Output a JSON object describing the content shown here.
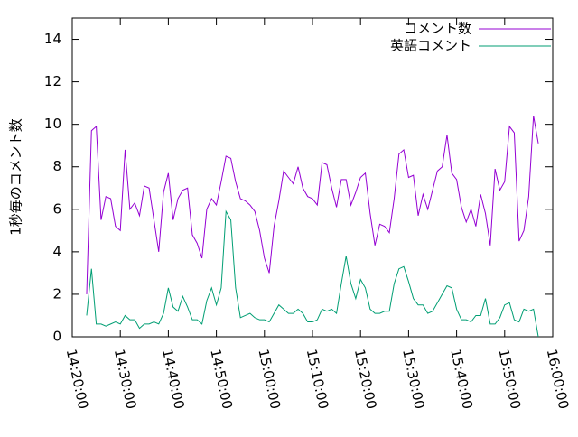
{
  "chart_data": {
    "type": "line",
    "y_label": "1秒毎のコメント数",
    "x": [
      863,
      864,
      865,
      866,
      867,
      868,
      869,
      870,
      871,
      872,
      873,
      874,
      875,
      876,
      877,
      878,
      879,
      880,
      881,
      882,
      883,
      884,
      885,
      886,
      887,
      888,
      889,
      890,
      891,
      892,
      893,
      894,
      895,
      896,
      897,
      898,
      899,
      900,
      901,
      902,
      903,
      904,
      905,
      906,
      907,
      908,
      909,
      910,
      911,
      912,
      913,
      914,
      915,
      916,
      917,
      918,
      919,
      920,
      921,
      922,
      923,
      924,
      925,
      926,
      927,
      928,
      929,
      930,
      931,
      932,
      933,
      934,
      935,
      936,
      937,
      938,
      939,
      940,
      941,
      942,
      943,
      944,
      945,
      946,
      947,
      948,
      949,
      950,
      951,
      952,
      953,
      954,
      955,
      956,
      957
    ],
    "series": [
      {
        "name": "コメント数",
        "color": "#9400d3",
        "values": [
          2.0,
          9.7,
          9.9,
          5.5,
          6.6,
          6.5,
          5.2,
          5.0,
          8.8,
          6.0,
          6.3,
          5.7,
          7.1,
          7.0,
          5.5,
          4.0,
          6.8,
          7.7,
          5.5,
          6.5,
          6.9,
          7.0,
          4.8,
          4.4,
          3.7,
          6.0,
          6.5,
          6.2,
          7.3,
          8.5,
          8.4,
          7.3,
          6.5,
          6.4,
          6.2,
          5.9,
          5.0,
          3.7,
          3.0,
          5.2,
          6.4,
          7.8,
          7.5,
          7.2,
          8.0,
          7.0,
          6.6,
          6.5,
          6.2,
          8.2,
          8.1,
          7.0,
          6.1,
          7.4,
          7.4,
          6.2,
          6.8,
          7.5,
          7.7,
          5.8,
          4.3,
          5.3,
          5.2,
          4.9,
          6.5,
          8.6,
          8.8,
          7.5,
          7.6,
          5.7,
          6.7,
          6.0,
          6.9,
          7.8,
          8.0,
          9.5,
          7.7,
          7.4,
          6.1,
          5.4,
          6.0,
          5.2,
          6.7,
          5.8,
          4.3,
          7.9,
          6.9,
          7.3,
          9.9,
          9.6,
          4.5,
          5.0,
          6.6,
          10.4,
          9.1
        ]
      },
      {
        "name": "英語コメント",
        "color": "#009e73",
        "values": [
          1.0,
          3.2,
          0.6,
          0.6,
          0.5,
          0.6,
          0.7,
          0.6,
          1.0,
          0.8,
          0.8,
          0.4,
          0.6,
          0.6,
          0.7,
          0.6,
          1.1,
          2.3,
          1.4,
          1.2,
          1.9,
          1.4,
          0.8,
          0.8,
          0.6,
          1.7,
          2.3,
          1.5,
          2.3,
          5.9,
          5.5,
          2.3,
          0.9,
          1.0,
          1.1,
          0.9,
          0.8,
          0.8,
          0.7,
          1.1,
          1.5,
          1.3,
          1.1,
          1.1,
          1.3,
          1.1,
          0.7,
          0.7,
          0.8,
          1.3,
          1.2,
          1.3,
          1.1,
          2.5,
          3.8,
          2.5,
          1.8,
          2.7,
          2.3,
          1.3,
          1.1,
          1.1,
          1.2,
          1.2,
          2.5,
          3.2,
          3.3,
          2.6,
          1.8,
          1.5,
          1.5,
          1.1,
          1.2,
          1.6,
          2.0,
          2.4,
          2.3,
          1.3,
          0.8,
          0.8,
          0.7,
          1.0,
          1.0,
          1.8,
          0.6,
          0.6,
          0.9,
          1.5,
          1.6,
          0.8,
          0.7,
          1.3,
          1.2,
          1.3,
          0.0
        ]
      }
    ],
    "xlim": [
      860,
      960
    ],
    "xticks": [
      {
        "value": 860,
        "label": "14:20:00"
      },
      {
        "value": 870,
        "label": "14:30:00"
      },
      {
        "value": 880,
        "label": "14:40:00"
      },
      {
        "value": 890,
        "label": "14:50:00"
      },
      {
        "value": 900,
        "label": "15:00:00"
      },
      {
        "value": 910,
        "label": "15:10:00"
      },
      {
        "value": 920,
        "label": "15:20:00"
      },
      {
        "value": 930,
        "label": "15:30:00"
      },
      {
        "value": 940,
        "label": "15:40:00"
      },
      {
        "value": 950,
        "label": "15:50:00"
      },
      {
        "value": 960,
        "label": "16:00:00"
      }
    ],
    "ylim": [
      0,
      15
    ],
    "yticks": [
      0,
      2,
      4,
      6,
      8,
      10,
      12,
      14
    ],
    "legend": "top-right"
  }
}
